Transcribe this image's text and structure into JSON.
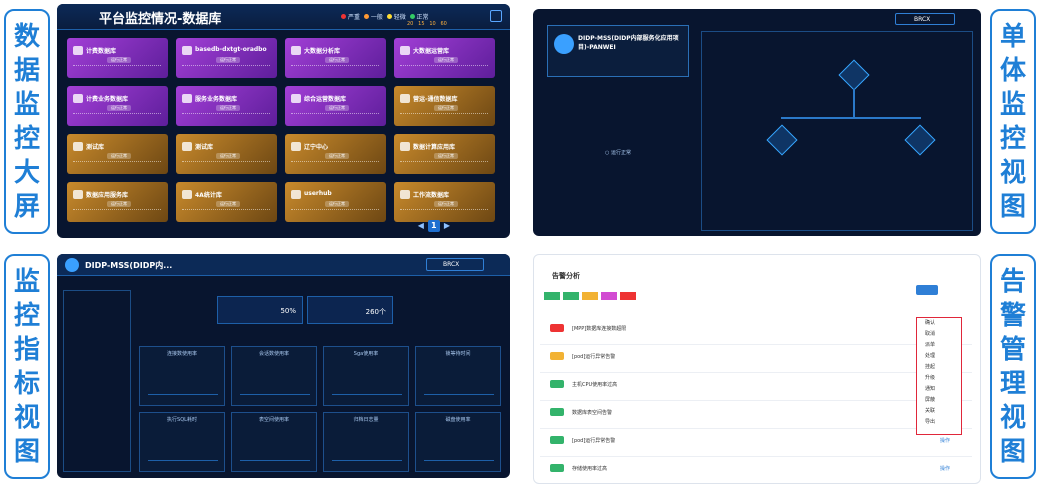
{
  "labels": {
    "big_screen": [
      "数",
      "据",
      "监",
      "控",
      "大",
      "屏"
    ],
    "single_view": [
      "单",
      "体",
      "监",
      "控",
      "视",
      "图"
    ],
    "metric_view": [
      "监",
      "控",
      "指",
      "标",
      "视",
      "图"
    ],
    "alarm_view": [
      "告",
      "警",
      "管",
      "理",
      "视",
      "图"
    ]
  },
  "panel1": {
    "title": "平台监控情况-数据库",
    "legend": [
      "严重",
      "一般",
      "轻微",
      "正常"
    ],
    "counts": [
      "20",
      "15",
      "10",
      "60"
    ],
    "cards": [
      {
        "name": "计费数据库",
        "color": "purple"
      },
      {
        "name": "basedb-dxtgt-oradbo",
        "color": "purple"
      },
      {
        "name": "大数据分析库",
        "color": "purple"
      },
      {
        "name": "大数据运营库",
        "color": "purple"
      },
      {
        "name": "计费业务数据库",
        "color": "purple"
      },
      {
        "name": "服务业务数据库",
        "color": "purple"
      },
      {
        "name": "综合运营数据库",
        "color": "purple"
      },
      {
        "name": "营运-通信数据库",
        "color": "orange"
      },
      {
        "name": "测试库",
        "color": "orange"
      },
      {
        "name": "测试库",
        "color": "orange"
      },
      {
        "name": "辽宁中心",
        "color": "orange"
      },
      {
        "name": "数据计算应用库",
        "color": "orange"
      },
      {
        "name": "数据应用服务库",
        "color": "orange"
      },
      {
        "name": "4A统计库",
        "color": "orange"
      },
      {
        "name": "userhub",
        "color": "orange"
      },
      {
        "name": "工作流数据库",
        "color": "orange"
      }
    ],
    "tag": "运行正常",
    "page": "1"
  },
  "panel2": {
    "title": "DIDP-MSS(DIDP内部服务化应用项目)-PANWEI",
    "search": "BRCX"
  },
  "panel3": {
    "title": "DIDP-MSS(DIDP内...",
    "search": "BRCX",
    "kpi1": "50%",
    "kpi2": "260个",
    "charts": [
      "连接数使用率",
      "会话数使用率",
      "Sga使用率",
      "锁等待时间",
      "执行SQL耗时",
      "表空间使用率",
      "归档日志量",
      "磁盘使用率"
    ]
  },
  "panel4": {
    "title": "告警分析",
    "menu": [
      "确认",
      "取消",
      "派单",
      "处理",
      "挂起",
      "升级",
      "通知",
      "屏蔽",
      "关联",
      "导出"
    ],
    "op": "操作",
    "rows": [
      "[MPP]数据库连接数超限",
      "[pod]运行异常告警",
      "主机CPU使用率过高",
      "数据库表空间告警",
      "[pod]运行异常告警",
      "存储使用率过高"
    ]
  }
}
